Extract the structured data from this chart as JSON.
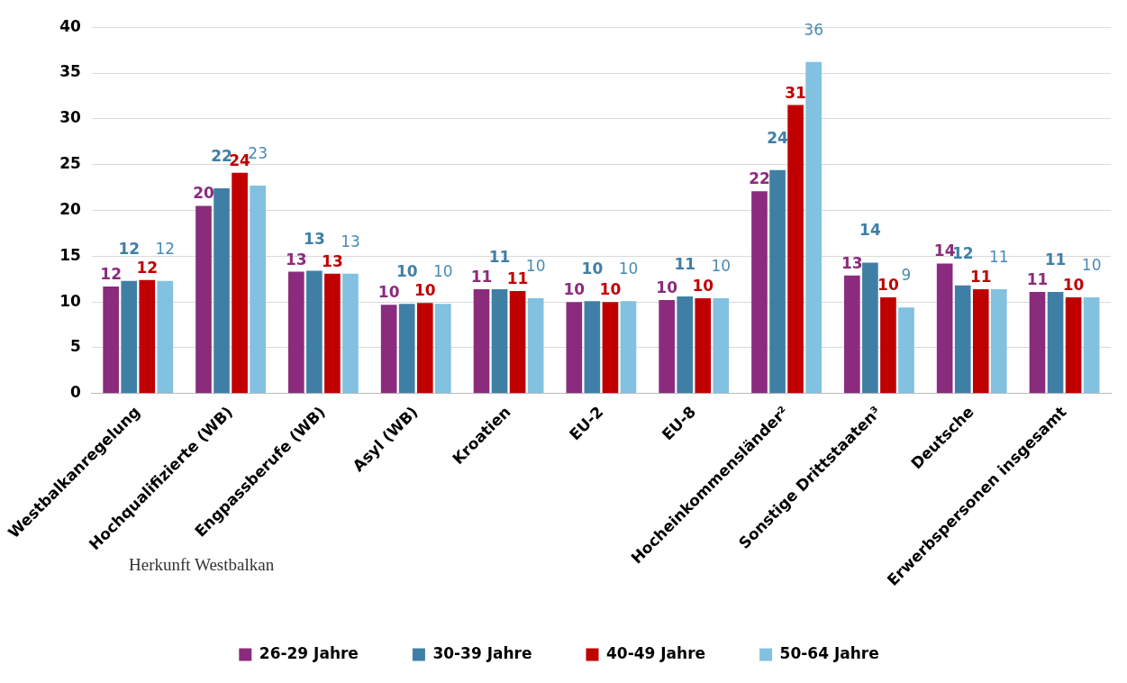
{
  "chart_data": {
    "type": "bar",
    "categories": [
      "Westbalkanregelung",
      "Hochqualifizierte (WB)",
      "Engpassberufe (WB)",
      "Asyl (WB)",
      "Kroatien",
      "EU-2",
      "EU-8",
      "Hocheinkommensländer²",
      "Sonstige Drittstaaten³",
      "Deutsche",
      "Erwerbspersonen insgesamt"
    ],
    "series": [
      {
        "name": "26-29 Jahre",
        "color": "#8b2b7d",
        "values": [
          11.7,
          20.5,
          13.3,
          9.7,
          11.4,
          10.0,
          10.2,
          22.1,
          12.9,
          14.2,
          11.1
        ],
        "value_labels": [
          "12",
          "20",
          "13",
          "10",
          "11",
          "10",
          "10",
          "22",
          "13",
          "14",
          "11"
        ]
      },
      {
        "name": "30-39 Jahre",
        "color": "#3f7fa6",
        "values": [
          12.3,
          22.4,
          13.4,
          9.8,
          11.4,
          10.1,
          10.6,
          24.4,
          14.3,
          11.8,
          11.1
        ],
        "value_labels": [
          "12",
          "22",
          "13",
          "10",
          "11",
          "10",
          "11",
          "24",
          "14",
          "12",
          "11"
        ]
      },
      {
        "name": "40-49 Jahre",
        "color": "#c00000",
        "values": [
          12.4,
          24.1,
          13.1,
          9.9,
          11.2,
          10.0,
          10.4,
          31.5,
          10.5,
          11.4,
          10.5
        ],
        "value_labels": [
          "12",
          "24",
          "13",
          "10",
          "11",
          "10",
          "10",
          "31",
          "10",
          "11",
          "10"
        ]
      },
      {
        "name": "50-64 Jahre",
        "color": "#82c1e0",
        "values": [
          12.3,
          22.7,
          13.1,
          9.8,
          10.4,
          10.1,
          10.4,
          36.2,
          9.4,
          11.4,
          10.5
        ],
        "value_labels": [
          "12",
          "23",
          "13",
          "10",
          "10",
          "10",
          "10",
          "36",
          "9",
          "11",
          "10"
        ]
      }
    ],
    "ylim": [
      0,
      40
    ],
    "yticks": [
      0,
      5,
      10,
      15,
      20,
      25,
      30,
      35,
      40
    ],
    "grid": "y",
    "legend": "bottom",
    "annotations": [
      "Herkunft Westbalkan"
    ]
  }
}
